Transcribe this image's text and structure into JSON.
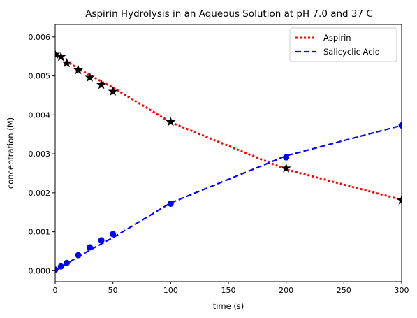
{
  "chart_data": {
    "type": "line",
    "title": "Aspirin Hydrolysis in an Aqueous Solution at pH 7.0 and 37 C",
    "xlabel": "time (s)",
    "ylabel": "concentration (M)",
    "xlim": [
      0,
      300
    ],
    "ylim": [
      -0.00028,
      0.00632
    ],
    "x_ticks": [
      0,
      50,
      100,
      150,
      200,
      250,
      300
    ],
    "x_tick_labels": [
      "0",
      "50",
      "100",
      "150",
      "200",
      "250",
      "300"
    ],
    "y_ticks": [
      0,
      0.001,
      0.002,
      0.003,
      0.004,
      0.005,
      0.006
    ],
    "y_tick_labels": [
      "0.000",
      "0.001",
      "0.002",
      "0.003",
      "0.004",
      "0.005",
      "0.006"
    ],
    "grid": false,
    "legend_position": "top-right",
    "series": [
      {
        "name": "Aspirin",
        "color": "#ff0000",
        "line_style": "dotted",
        "line_x": [
          0,
          5,
          10,
          20,
          30,
          40,
          50,
          100,
          200,
          300
        ],
        "line_y": [
          0.00555,
          0.00546,
          0.00537,
          0.00519,
          0.00502,
          0.00486,
          0.0047,
          0.00381,
          0.0026,
          0.00182
        ],
        "marker": "star",
        "marker_color": "#000000",
        "marker_x": [
          0,
          5,
          10,
          20,
          30,
          40,
          50,
          100,
          200,
          300
        ],
        "marker_y": [
          0.00555,
          0.00549,
          0.00533,
          0.00515,
          0.00496,
          0.00477,
          0.0046,
          0.00382,
          0.00263,
          0.00181
        ]
      },
      {
        "name": "Salicyclic Acid",
        "color": "#0000ff",
        "line_style": "dashed",
        "line_x": [
          0,
          5,
          10,
          20,
          30,
          40,
          50,
          100,
          200,
          300
        ],
        "line_y": [
          0.0,
          9e-05,
          0.00018,
          0.00036,
          0.00053,
          0.00069,
          0.00085,
          0.00174,
          0.00295,
          0.00373
        ],
        "marker": "circle",
        "marker_color": "#0000ff",
        "marker_x": [
          0,
          5,
          10,
          20,
          30,
          40,
          50,
          100,
          200,
          300
        ],
        "marker_y": [
          3e-05,
          0.00011,
          0.0002,
          0.0004,
          0.0006,
          0.00078,
          0.00094,
          0.00172,
          0.00291,
          0.00373
        ]
      }
    ]
  }
}
